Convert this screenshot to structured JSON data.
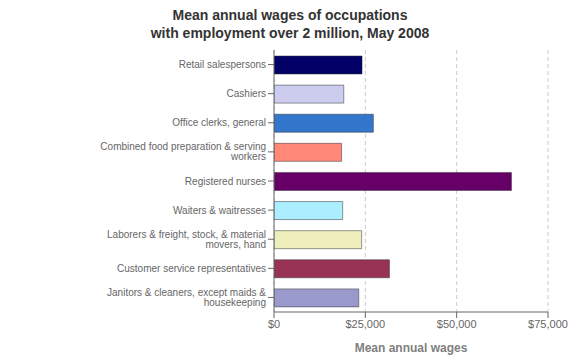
{
  "chart_data": {
    "type": "bar",
    "orientation": "horizontal",
    "title": "Mean annual wages of occupations\nwith employment over 2 million, May 2008",
    "xlabel": "Mean annual wages",
    "categories": [
      "Janitors & cleaners, except maids & housekeeping",
      "Customer service representatives",
      "Laborers & freight, stock, & material movers, hand",
      "Waiters & waitresses",
      "Registered nurses",
      "Combined food preparation & serving workers",
      "Office clerks, general",
      "Cashiers",
      "Retail salespersons"
    ],
    "values": [
      23200,
      31600,
      24000,
      18800,
      65000,
      18500,
      27200,
      19100,
      24100
    ],
    "colors": [
      "#9999cc",
      "#993355",
      "#eeeebb",
      "#aaeeff",
      "#660066",
      "#ff8877",
      "#3377cc",
      "#ccccee",
      "#000066"
    ],
    "xlim": [
      0,
      75000
    ],
    "xticks": [
      {
        "value": 0,
        "label": "$0"
      },
      {
        "value": 25000,
        "label": "$25,000"
      },
      {
        "value": 50000,
        "label": "$50,000"
      },
      {
        "value": 75000,
        "label": "$75,000"
      }
    ],
    "grid": true
  }
}
